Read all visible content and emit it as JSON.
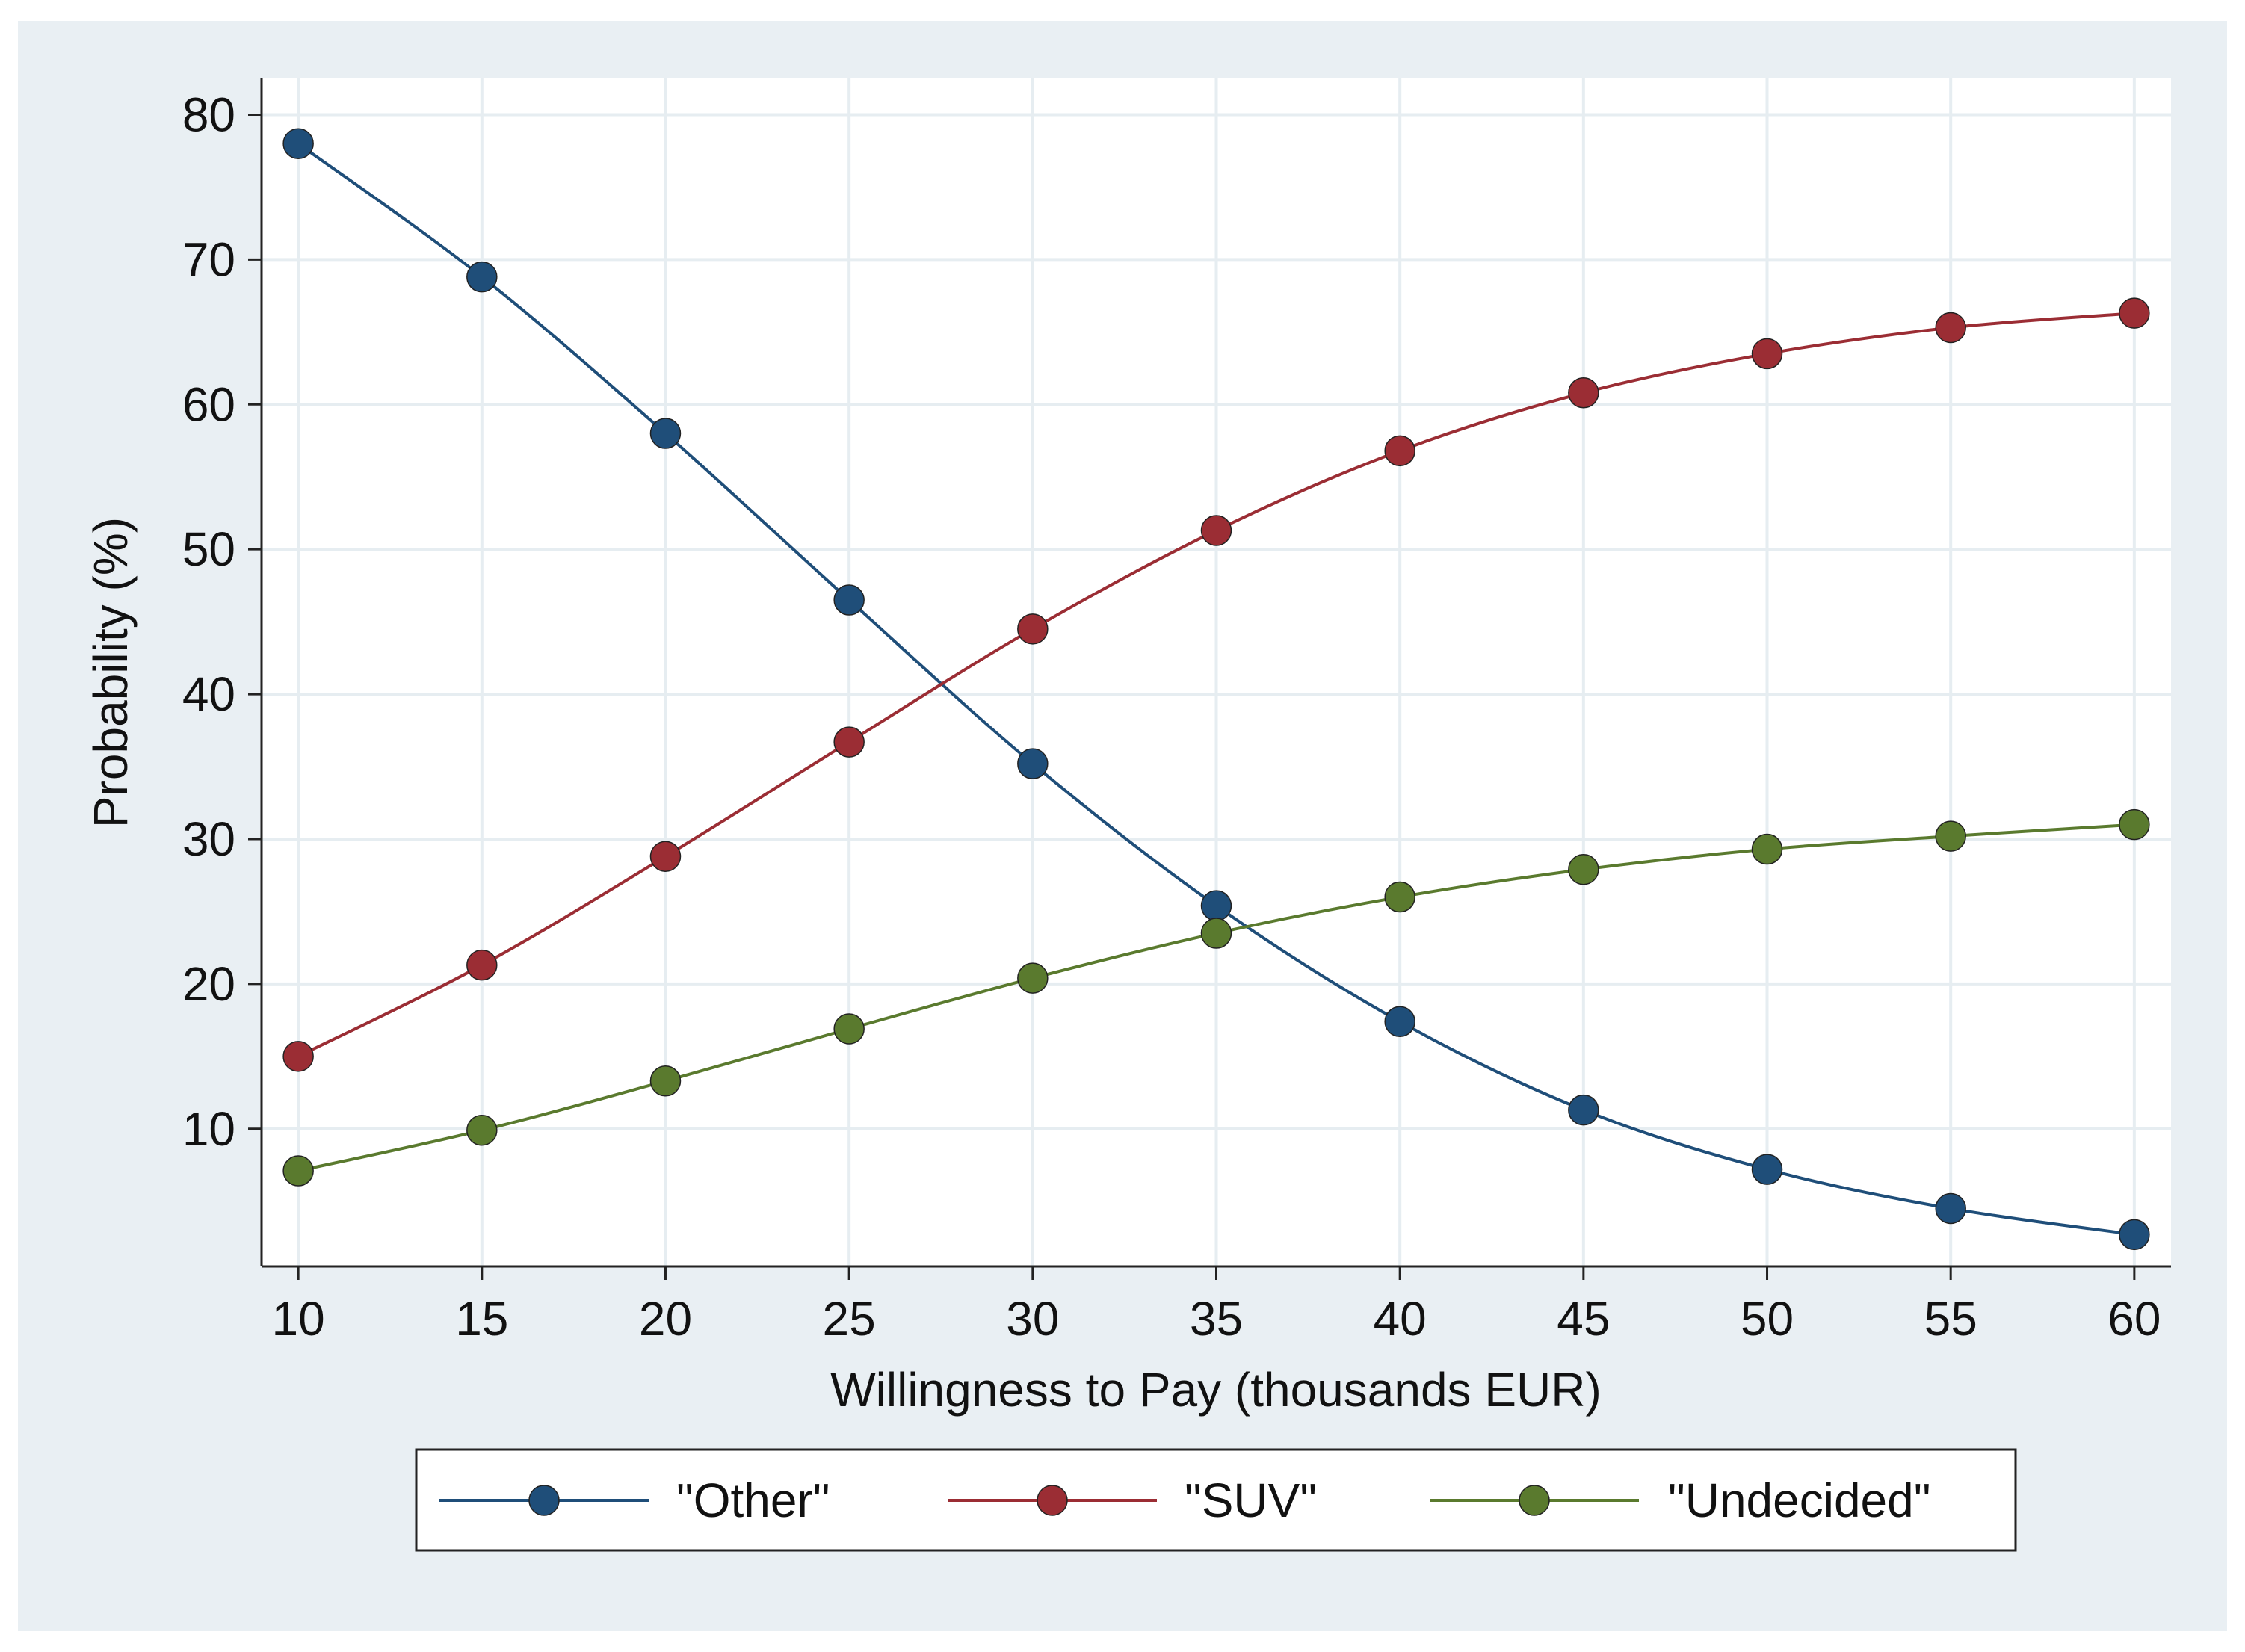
{
  "chart_data": {
    "type": "line",
    "title": "",
    "xlabel": "Willingness to Pay (thousands EUR)",
    "ylabel": "Probability (%)",
    "x": [
      10,
      15,
      20,
      25,
      30,
      35,
      40,
      45,
      50,
      55,
      60
    ],
    "xticks": [
      "10",
      "15",
      "20",
      "25",
      "30",
      "35",
      "40",
      "45",
      "50",
      "55",
      "60"
    ],
    "yticks": [
      "10",
      "20",
      "30",
      "40",
      "50",
      "60",
      "70",
      "80"
    ],
    "xlim": [
      9,
      61
    ],
    "ylim": [
      0.5,
      82.5
    ],
    "grid": true,
    "legend_position": "bottom",
    "series": [
      {
        "name": "\"Other\"",
        "color": "#1f4e79",
        "values": [
          78.0,
          68.8,
          58.0,
          46.5,
          35.2,
          25.4,
          17.4,
          11.3,
          7.2,
          4.5,
          2.7
        ]
      },
      {
        "name": "\"SUV\"",
        "color": "#9b2d34",
        "values": [
          15.0,
          21.3,
          28.8,
          36.7,
          44.5,
          51.3,
          56.8,
          60.8,
          63.5,
          65.3,
          66.3
        ]
      },
      {
        "name": "\"Undecided\"",
        "color": "#5a7a2e",
        "values": [
          7.1,
          9.9,
          13.3,
          16.9,
          20.4,
          23.5,
          26.0,
          27.9,
          29.3,
          30.2,
          31.0
        ]
      }
    ]
  }
}
